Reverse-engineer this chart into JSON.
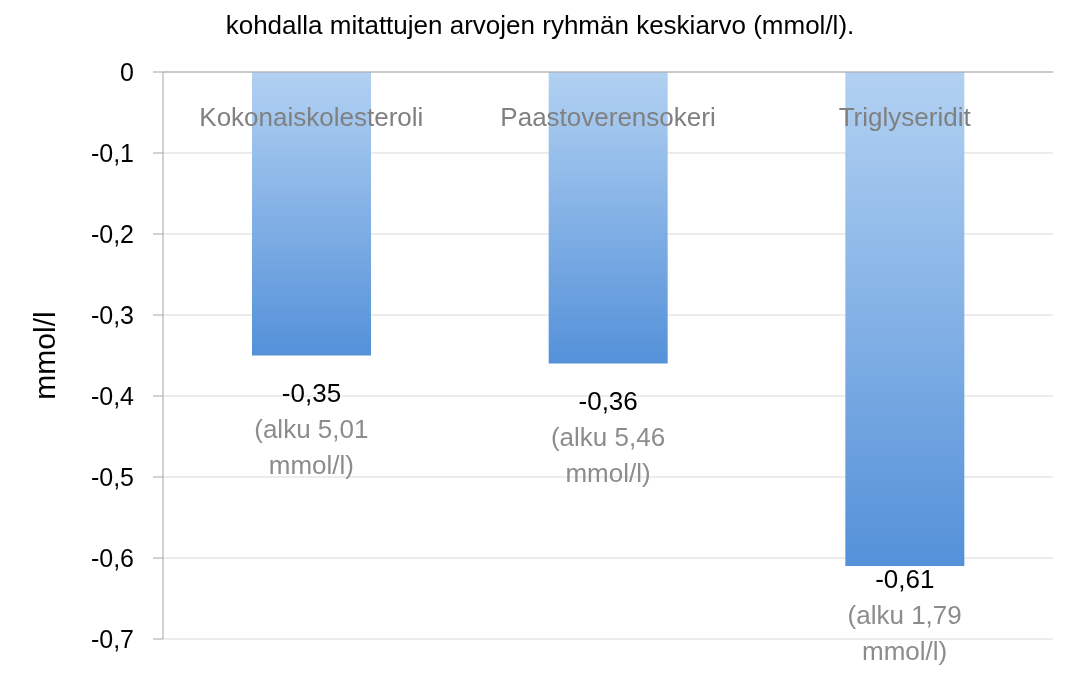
{
  "chart_data": {
    "type": "bar",
    "title": "kohdalla mitattujen arvojen ryhmän keskiarvo (mmol/l).",
    "ylabel": "mmol/l",
    "categories": [
      "Kokonaiskolesteroli",
      "Paastoverensokeri",
      "Triglyseridit"
    ],
    "values": [
      -0.35,
      -0.36,
      -0.61
    ],
    "color": "#7fb3ea",
    "value_labels": [
      "-0,35",
      "-0,36",
      "-0,61"
    ],
    "annotations": [
      {
        "text": "(alku 5,01 mmol/l)",
        "x": "Kokonaiskolesteroli",
        "y": -0.35
      },
      {
        "text": "(alku 5,46 mmol/l)",
        "x": "Paastoverensokeri",
        "y": -0.36
      },
      {
        "text": "(alku 1,79 mmol/l)",
        "x": "Triglyseridit",
        "y": -0.61
      }
    ],
    "ylim": [
      -0.7,
      0
    ],
    "yticks": [
      0,
      {
        "value": -0.1,
        "label": "-0,1"
      },
      {
        "value": -0.2,
        "label": "-0,2"
      },
      {
        "value": -0.3,
        "label": "-0,3"
      },
      {
        "value": -0.4,
        "label": "-0,4"
      },
      {
        "value": -0.5,
        "label": "-0,5"
      },
      {
        "value": -0.6,
        "label": "-0,6"
      },
      {
        "value": -0.7,
        "label": "-0,7"
      }
    ],
    "grid": "y"
  }
}
